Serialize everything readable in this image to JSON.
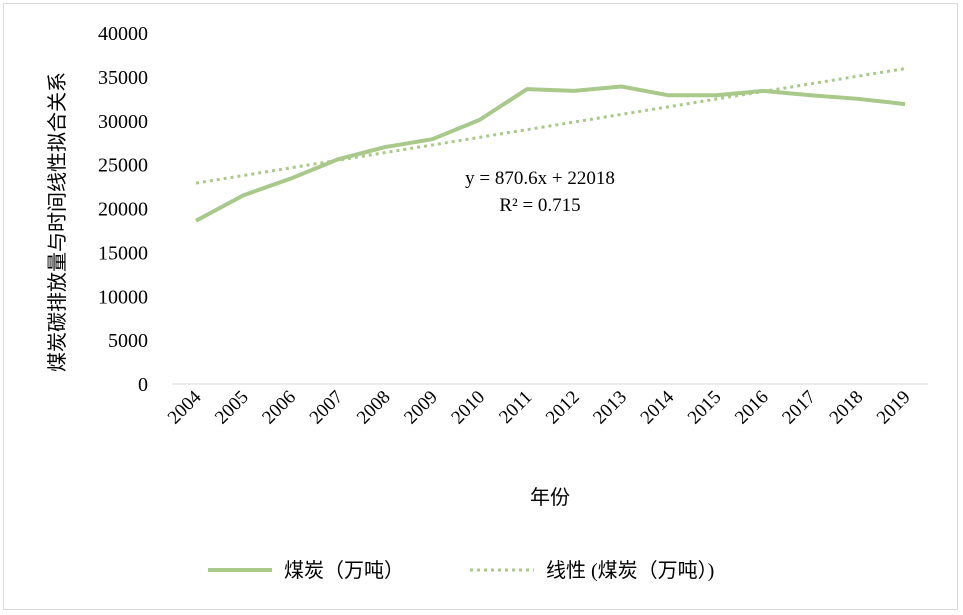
{
  "chart_data": {
    "type": "line",
    "title": "",
    "xlabel": "年份",
    "ylabel": "煤炭碳排放量与时间线性拟合关系",
    "categories": [
      "2004",
      "2005",
      "2006",
      "2007",
      "2008",
      "2009",
      "2010",
      "2011",
      "2012",
      "2013",
      "2014",
      "2015",
      "2016",
      "2017",
      "2018",
      "2019"
    ],
    "series": [
      {
        "name": "煤炭（万吨）",
        "color": "#a9c98a",
        "style": "solid",
        "values": [
          18600,
          21500,
          23400,
          25600,
          27000,
          27900,
          30100,
          33600,
          33400,
          33900,
          32900,
          32900,
          33400,
          32900,
          32500,
          31900
        ]
      }
    ],
    "trendline": {
      "name": "线性 (煤炭（万吨）)",
      "color": "#a9c98a",
      "style": "dotted",
      "slope": 870.6,
      "intercept": 22018,
      "equation": "y = 870.6x + 22018",
      "r2": "R² = 0.715"
    },
    "yticks": [
      "0",
      "5000",
      "10000",
      "15000",
      "20000",
      "25000",
      "30000",
      "35000",
      "40000"
    ],
    "ylim": [
      0,
      40000
    ],
    "grid": false,
    "legend": "bottom"
  }
}
